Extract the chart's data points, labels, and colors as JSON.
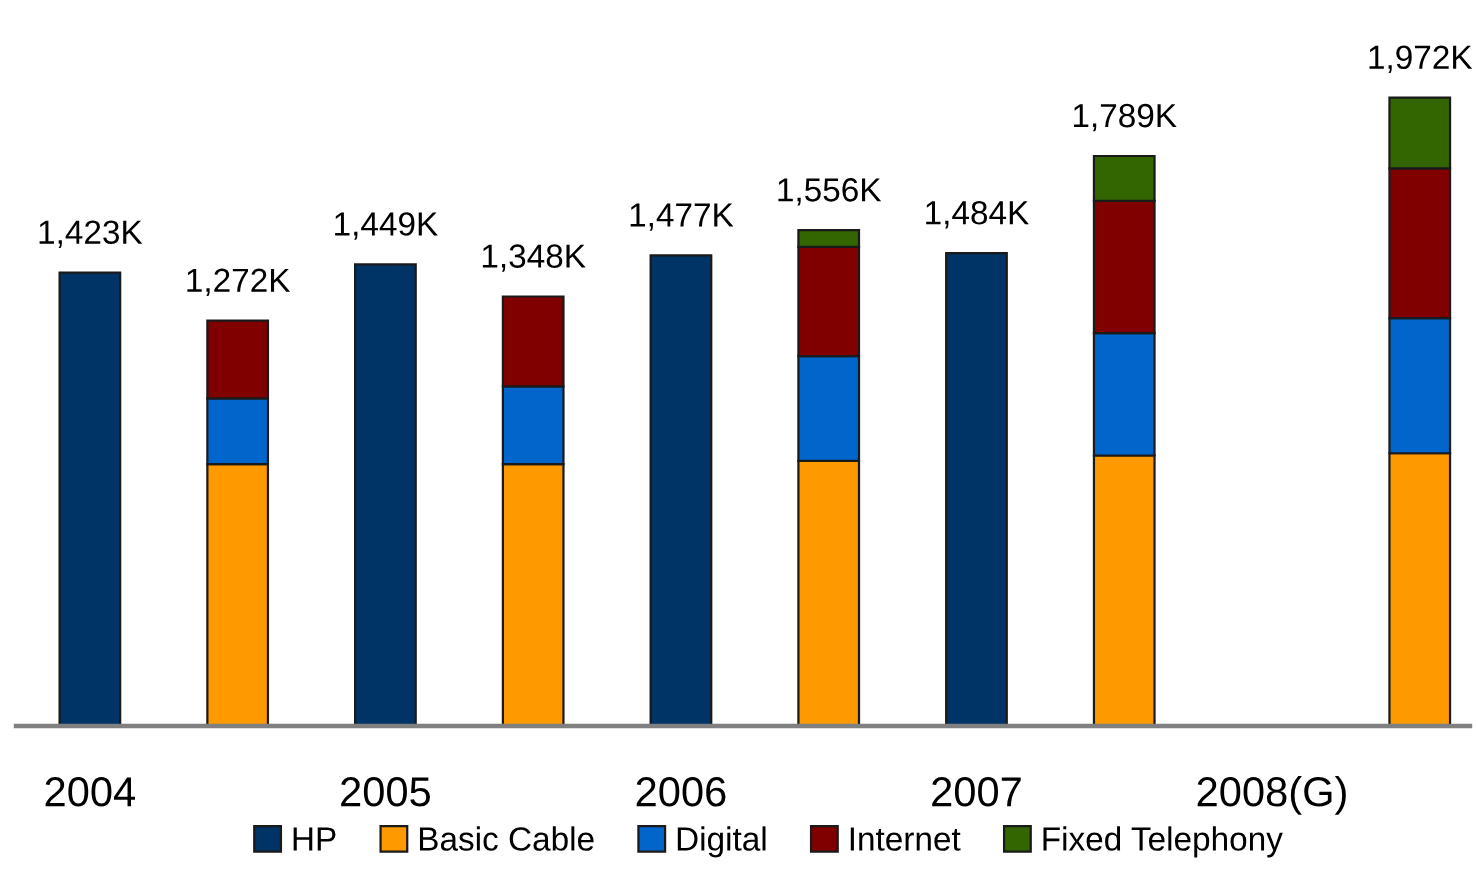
{
  "chart_data": {
    "type": "bar",
    "stacked": true,
    "categories": [
      "2004",
      null,
      "2005",
      null,
      "2006",
      null,
      "2007",
      null,
      "2008(G)",
      null
    ],
    "series": [
      {
        "name": "HP",
        "color": "#003366",
        "values": [
          1423,
          null,
          1449,
          null,
          1477,
          null,
          1484,
          null,
          null,
          null
        ],
        "value_labels": [
          "1,423K",
          null,
          "1,449K",
          null,
          "1,477K",
          null,
          "1,484K",
          null,
          null,
          null
        ]
      },
      {
        "name": "Basic Cable",
        "color": "#ff9900",
        "values": [
          null,
          822,
          null,
          822,
          null,
          832,
          null,
          849,
          null,
          856
        ]
      },
      {
        "name": "Digital",
        "color": "#0066cc",
        "values": [
          null,
          206,
          null,
          244,
          null,
          329,
          null,
          384,
          null,
          424
        ]
      },
      {
        "name": "Internet",
        "color": "#800000",
        "values": [
          null,
          244,
          null,
          282,
          null,
          343,
          null,
          415,
          null,
          470
        ]
      },
      {
        "name": "Fixed Telephony",
        "color": "#336600",
        "values": [
          null,
          null,
          null,
          null,
          null,
          52,
          null,
          141,
          null,
          222
        ]
      }
    ],
    "totals": [
      null,
      "1,272K",
      null,
      "1,348K",
      null,
      "1,556K",
      null,
      "1,789K",
      null,
      "1,972K"
    ],
    "legend": "bottom"
  }
}
